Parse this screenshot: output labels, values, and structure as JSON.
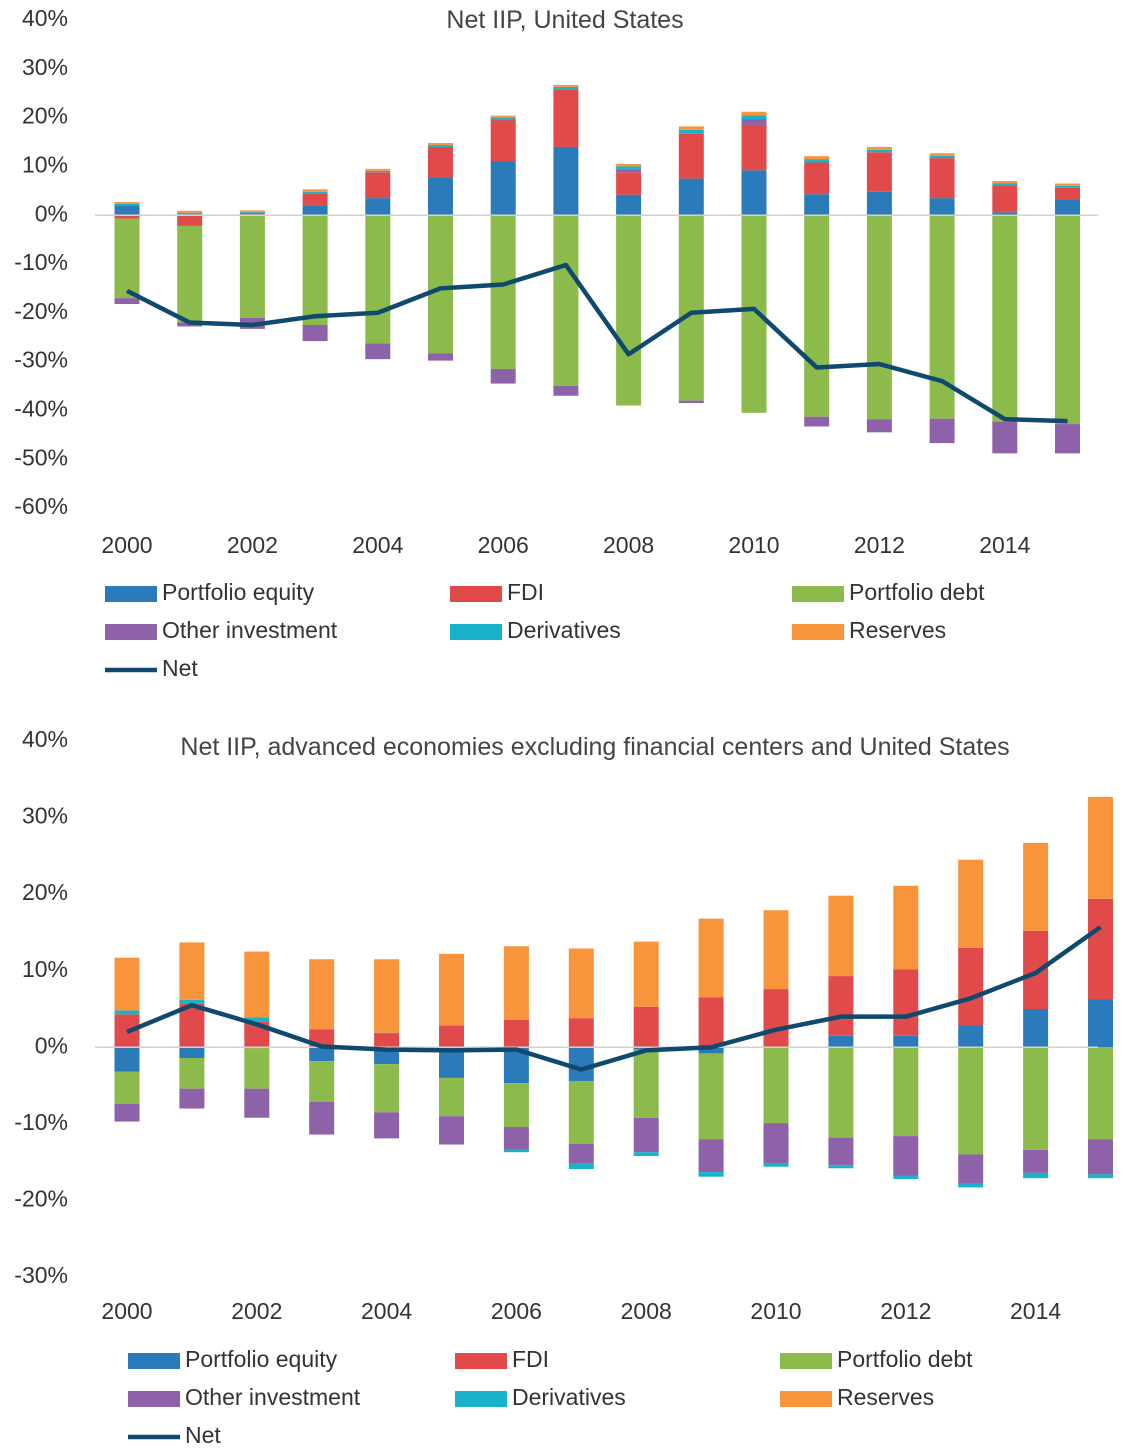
{
  "chart_data": [
    {
      "type": "bar",
      "stacked": true,
      "title": "Net IIP, United States",
      "categories": [
        "2000",
        null,
        "2002",
        null,
        "2004",
        null,
        "2006",
        null,
        "2008",
        null,
        "2010",
        null,
        "2012",
        null,
        "2014",
        null
      ],
      "ylim": [
        -60,
        40
      ],
      "yticks": [
        {
          "value": 40,
          "label": "40%"
        },
        {
          "value": 30,
          "label": "30%"
        },
        {
          "value": 20,
          "label": "20%"
        },
        {
          "value": 10,
          "label": "10%"
        },
        {
          "value": 0,
          "label": "0%"
        },
        {
          "value": -10,
          "label": "-10%"
        },
        {
          "value": -20,
          "label": "-20%"
        },
        {
          "value": -30,
          "label": "-30%"
        },
        {
          "value": -40,
          "label": "-40%"
        },
        {
          "value": -50,
          "label": "-50%"
        },
        {
          "value": -60,
          "label": "-60%"
        }
      ],
      "series": [
        {
          "name": "Portfolio equity",
          "color": "#2b7bba",
          "values": [
            2,
            0.2,
            0.2,
            2,
            3.5,
            7.8,
            11,
            14,
            4.2,
            7.5,
            9.2,
            4.3,
            4.8,
            3.5,
            0.6,
            3.3
          ]
        },
        {
          "name": "FDI",
          "color": "#e04a4b",
          "values": [
            -0.7,
            -2.2,
            0.3,
            2.5,
            5.3,
            6.2,
            8.5,
            11.8,
            4.6,
            9.2,
            9.3,
            6.5,
            8.1,
            8.2,
            5.5,
            2.3
          ]
        },
        {
          "name": "Portfolio debt",
          "color": "#8dbb4b",
          "values": [
            -16.3,
            -19.8,
            -21,
            -22.5,
            -26.3,
            -28.3,
            -31.5,
            -35,
            -39,
            -38,
            -40.5,
            -41.3,
            -41.8,
            -41.7,
            -42.3,
            -42.8
          ]
        },
        {
          "name": "Other investment",
          "color": "#8d62a8",
          "values": [
            -1.2,
            -0.8,
            -2.3,
            -3.3,
            -3.2,
            -1.5,
            -3,
            -2,
            0.6,
            -0.5,
            1.2,
            -2,
            -2.7,
            -5,
            -6.5,
            -6
          ]
        },
        {
          "name": "Derivatives",
          "color": "#19b2c8",
          "values": [
            0.3,
            0.3,
            0.2,
            0.3,
            0.3,
            0.4,
            0.5,
            0.5,
            0.6,
            0.8,
            0.8,
            0.7,
            0.5,
            0.5,
            0.4,
            0.4
          ]
        },
        {
          "name": "Reserves",
          "color": "#f8943c",
          "values": [
            0.4,
            0.4,
            0.3,
            0.5,
            0.4,
            0.4,
            0.4,
            0.4,
            0.5,
            0.7,
            0.7,
            0.6,
            0.6,
            0.5,
            0.5,
            0.5
          ]
        },
        {
          "name": "Net",
          "type": "line",
          "color": "#0f4a6e",
          "values": [
            -15.5,
            -22,
            -22.5,
            -20.7,
            -20,
            -15,
            -14.2,
            -10.2,
            -28.5,
            -20,
            -19.2,
            -31.2,
            -30.5,
            -34,
            -41.8,
            -42.2
          ]
        }
      ]
    },
    {
      "type": "bar",
      "stacked": true,
      "title": "Net IIP, advanced economies excluding financial centers and United States",
      "categories": [
        "2000",
        null,
        "2002",
        null,
        "2004",
        null,
        "2006",
        null,
        "2008",
        null,
        "2010",
        null,
        "2012",
        null,
        "2014",
        null
      ],
      "ylim": [
        -30,
        40
      ],
      "yticks": [
        {
          "value": 40,
          "label": "40%"
        },
        {
          "value": 30,
          "label": "30%"
        },
        {
          "value": 20,
          "label": "20%"
        },
        {
          "value": 10,
          "label": "10%"
        },
        {
          "value": 0,
          "label": "0%"
        },
        {
          "value": -10,
          "label": "-10%"
        },
        {
          "value": -20,
          "label": "-20%"
        },
        {
          "value": -30,
          "label": "-30%"
        }
      ],
      "series": [
        {
          "name": "Portfolio equity",
          "color": "#2b7bba",
          "values": [
            -3.2,
            -1.4,
            -0.1,
            -1.8,
            -2.2,
            -4,
            -4.7,
            -4.4,
            -0.3,
            -0.8,
            0,
            1.5,
            1.5,
            2.9,
            5,
            6.3
          ]
        },
        {
          "name": "FDI",
          "color": "#e04a4b",
          "values": [
            4.3,
            5.7,
            3.4,
            2.3,
            1.8,
            2.8,
            3.6,
            3.8,
            5.3,
            6.5,
            7.6,
            7.8,
            8.7,
            10.1,
            10.2,
            13.1
          ]
        },
        {
          "name": "Portfolio debt",
          "color": "#8dbb4b",
          "values": [
            -4.2,
            -4,
            -5.3,
            -5.3,
            -6.3,
            -5,
            -5.7,
            -8.2,
            -8.9,
            -11.2,
            -9.9,
            -11.8,
            -11.6,
            -14,
            -13.4,
            -12
          ]
        },
        {
          "name": "Other investment",
          "color": "#8d62a8",
          "values": [
            -2.3,
            -2.6,
            -3.8,
            -4.3,
            -3.4,
            -3.7,
            -3,
            -2.6,
            -4.5,
            -4.3,
            -5.3,
            -3.6,
            -5.2,
            -3.8,
            -3,
            -4.6
          ]
        },
        {
          "name": "Derivatives",
          "color": "#19b2c8",
          "values": [
            0.5,
            0.5,
            0.5,
            0.1,
            0.1,
            0.1,
            -0.3,
            -0.7,
            -0.5,
            -0.6,
            -0.4,
            -0.4,
            -0.4,
            -0.5,
            -0.7,
            -0.5
          ]
        },
        {
          "name": "Reserves",
          "color": "#f8943c",
          "values": [
            6.9,
            7.5,
            8.6,
            9.1,
            9.6,
            9.3,
            9.6,
            9.1,
            8.5,
            10.3,
            10.3,
            10.5,
            10.9,
            11.5,
            11.5,
            13.3
          ]
        },
        {
          "name": "Net",
          "type": "line",
          "color": "#0f4a6e",
          "values": [
            2,
            5.5,
            3,
            0.1,
            -0.3,
            -0.4,
            -0.3,
            -2.9,
            -0.4,
            0,
            2.3,
            4,
            4,
            6.4,
            9.7,
            15.7
          ]
        }
      ]
    }
  ]
}
